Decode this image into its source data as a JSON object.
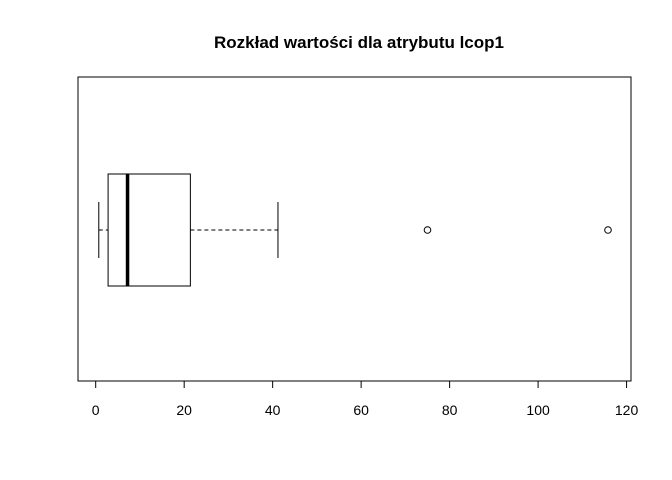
{
  "chart_data": {
    "type": "boxplot",
    "orientation": "horizontal",
    "title": "Rozkład wartości dla atrybutu lcop1",
    "xlabel": "",
    "ylabel": "",
    "xlim": [
      -4,
      121
    ],
    "x_ticks": [
      0,
      20,
      40,
      60,
      80,
      100,
      120
    ],
    "x_tick_labels": [
      "0",
      "20",
      "40",
      "60",
      "80",
      "100",
      "120"
    ],
    "grid": false,
    "legend": "none",
    "box": {
      "whisker_low": 0.7,
      "q1": 2.8,
      "median": 7.2,
      "q3": 21.4,
      "whisker_high": 41.2,
      "outliers": [
        75,
        115.8
      ]
    }
  }
}
